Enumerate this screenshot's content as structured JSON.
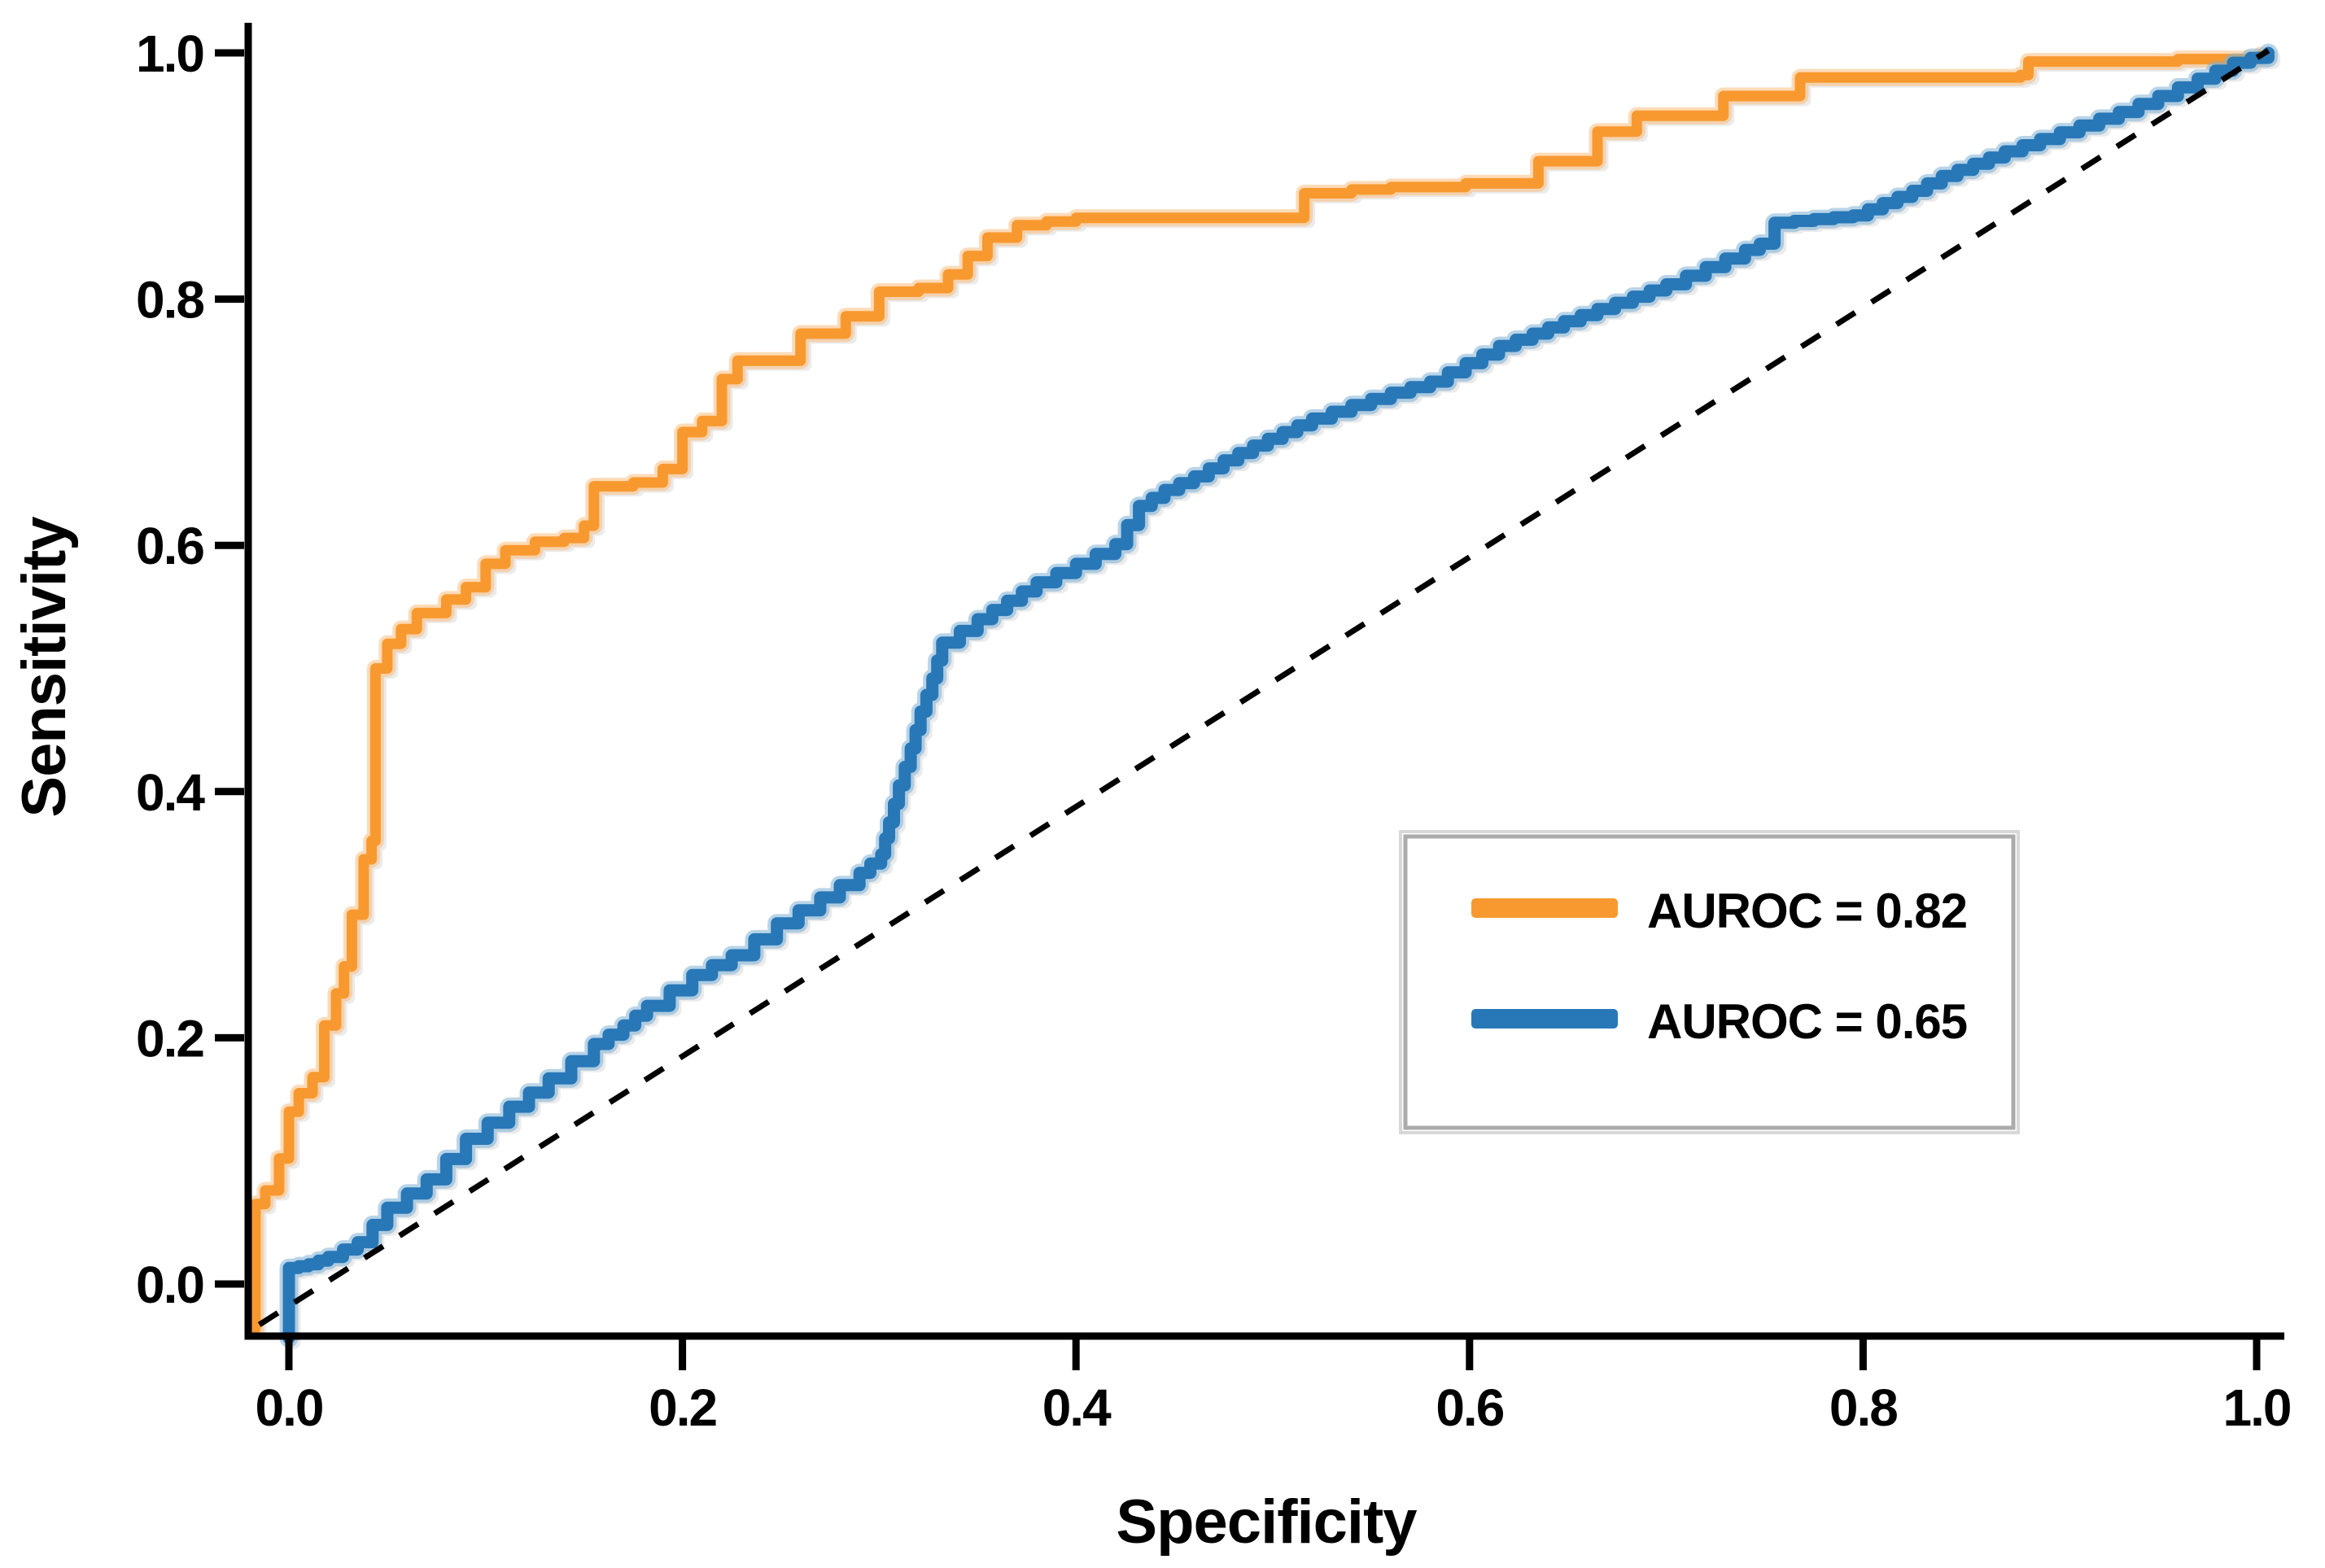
{
  "chart_data": {
    "type": "line",
    "subtype": "roc-step-curves",
    "title": "",
    "xlabel": "Specificity",
    "ylabel": "Sensitivity",
    "xlim": [
      0.0,
      1.0
    ],
    "ylim": [
      0.0,
      1.0
    ],
    "grid": "off",
    "x_ticks": [
      {
        "value": 0.0,
        "label": "0.0"
      },
      {
        "value": 0.2,
        "label": "0.2"
      },
      {
        "value": 0.4,
        "label": "0.4"
      },
      {
        "value": 0.6,
        "label": "0.6"
      },
      {
        "value": 0.8,
        "label": "0.8"
      },
      {
        "value": 1.0,
        "label": "1.0"
      }
    ],
    "y_ticks": [
      {
        "value": 0.0,
        "label": "0.0"
      },
      {
        "value": 0.2,
        "label": "0.2"
      },
      {
        "value": 0.4,
        "label": "0.4"
      },
      {
        "value": 0.6,
        "label": "0.6"
      },
      {
        "value": 0.8,
        "label": "0.8"
      },
      {
        "value": 1.0,
        "label": "1.0"
      }
    ],
    "series": [
      {
        "name": "AUROC = 0.82",
        "auroc": 0.82,
        "color": "#F8992F",
        "halo_color": "#FBBE7E",
        "line_width": 13,
        "substeps": 1,
        "points": [
          [
            -0.017,
            -0.036
          ],
          [
            -0.017,
            0.065
          ],
          [
            -0.012,
            0.068
          ],
          [
            -0.012,
            0.076
          ],
          [
            -0.005,
            0.079
          ],
          [
            -0.005,
            0.102
          ],
          [
            0.0,
            0.105
          ],
          [
            0.0,
            0.14
          ],
          [
            0.005,
            0.143
          ],
          [
            0.005,
            0.155
          ],
          [
            0.012,
            0.158
          ],
          [
            0.012,
            0.168
          ],
          [
            0.018,
            0.171
          ],
          [
            0.018,
            0.21
          ],
          [
            0.024,
            0.213
          ],
          [
            0.024,
            0.236
          ],
          [
            0.028,
            0.239
          ],
          [
            0.028,
            0.258
          ],
          [
            0.032,
            0.261
          ],
          [
            0.032,
            0.3
          ],
          [
            0.038,
            0.303
          ],
          [
            0.038,
            0.345
          ],
          [
            0.042,
            0.348
          ],
          [
            0.042,
            0.36
          ],
          [
            0.044,
            0.363
          ],
          [
            0.044,
            0.5
          ],
          [
            0.05,
            0.503
          ],
          [
            0.05,
            0.52
          ],
          [
            0.057,
            0.523
          ],
          [
            0.057,
            0.532
          ],
          [
            0.065,
            0.535
          ],
          [
            0.065,
            0.545
          ],
          [
            0.08,
            0.548
          ],
          [
            0.08,
            0.556
          ],
          [
            0.09,
            0.559
          ],
          [
            0.09,
            0.566
          ],
          [
            0.1,
            0.569
          ],
          [
            0.1,
            0.585
          ],
          [
            0.11,
            0.588
          ],
          [
            0.11,
            0.596
          ],
          [
            0.125,
            0.599
          ],
          [
            0.125,
            0.603
          ],
          [
            0.14,
            0.606
          ],
          [
            0.15,
            0.609
          ],
          [
            0.15,
            0.616
          ],
          [
            0.155,
            0.619
          ],
          [
            0.155,
            0.648
          ],
          [
            0.175,
            0.651
          ],
          [
            0.19,
            0.654
          ],
          [
            0.19,
            0.662
          ],
          [
            0.2,
            0.665
          ],
          [
            0.2,
            0.692
          ],
          [
            0.21,
            0.695
          ],
          [
            0.21,
            0.701
          ],
          [
            0.22,
            0.704
          ],
          [
            0.22,
            0.735
          ],
          [
            0.228,
            0.738
          ],
          [
            0.228,
            0.75
          ],
          [
            0.26,
            0.753
          ],
          [
            0.26,
            0.772
          ],
          [
            0.283,
            0.775
          ],
          [
            0.283,
            0.786
          ],
          [
            0.3,
            0.789
          ],
          [
            0.3,
            0.806
          ],
          [
            0.32,
            0.809
          ],
          [
            0.335,
            0.812
          ],
          [
            0.335,
            0.82
          ],
          [
            0.345,
            0.823
          ],
          [
            0.345,
            0.835
          ],
          [
            0.355,
            0.838
          ],
          [
            0.355,
            0.85
          ],
          [
            0.37,
            0.853
          ],
          [
            0.37,
            0.86
          ],
          [
            0.385,
            0.863
          ],
          [
            0.4,
            0.866
          ],
          [
            0.516,
            0.869
          ],
          [
            0.516,
            0.886
          ],
          [
            0.54,
            0.889
          ],
          [
            0.56,
            0.891
          ],
          [
            0.598,
            0.894
          ],
          [
            0.635,
            0.897
          ],
          [
            0.635,
            0.912
          ],
          [
            0.665,
            0.915
          ],
          [
            0.665,
            0.936
          ],
          [
            0.685,
            0.939
          ],
          [
            0.685,
            0.949
          ],
          [
            0.729,
            0.952
          ],
          [
            0.729,
            0.965
          ],
          [
            0.768,
            0.968
          ],
          [
            0.768,
            0.98
          ],
          [
            0.88,
            0.982
          ],
          [
            0.884,
            0.993
          ],
          [
            0.96,
            0.995
          ],
          [
            1.002,
            0.998
          ]
        ]
      },
      {
        "name": "AUROC = 0.65",
        "auroc": 0.65,
        "color": "#2878B8",
        "halo_color": "#7EB0D5",
        "line_width": 15,
        "substeps": 2,
        "points": [
          [
            0.0,
            -0.044
          ],
          [
            0.0,
            0.013
          ],
          [
            0.01,
            0.016
          ],
          [
            0.02,
            0.022
          ],
          [
            0.035,
            0.034
          ],
          [
            0.05,
            0.062
          ],
          [
            0.07,
            0.085
          ],
          [
            0.09,
            0.118
          ],
          [
            0.112,
            0.144
          ],
          [
            0.132,
            0.167
          ],
          [
            0.155,
            0.195
          ],
          [
            0.17,
            0.21
          ],
          [
            0.182,
            0.226
          ],
          [
            0.205,
            0.251
          ],
          [
            0.225,
            0.267
          ],
          [
            0.248,
            0.293
          ],
          [
            0.27,
            0.314
          ],
          [
            0.29,
            0.334
          ],
          [
            0.301,
            0.349
          ],
          [
            0.305,
            0.375
          ],
          [
            0.31,
            0.405
          ],
          [
            0.316,
            0.435
          ],
          [
            0.321,
            0.465
          ],
          [
            0.327,
            0.492
          ],
          [
            0.332,
            0.521
          ],
          [
            0.35,
            0.54
          ],
          [
            0.365,
            0.555
          ],
          [
            0.38,
            0.57
          ],
          [
            0.4,
            0.585
          ],
          [
            0.42,
            0.601
          ],
          [
            0.432,
            0.632
          ],
          [
            0.445,
            0.645
          ],
          [
            0.46,
            0.656
          ],
          [
            0.475,
            0.669
          ],
          [
            0.49,
            0.681
          ],
          [
            0.505,
            0.692
          ],
          [
            0.52,
            0.703
          ],
          [
            0.54,
            0.714
          ],
          [
            0.56,
            0.724
          ],
          [
            0.58,
            0.733
          ],
          [
            0.598,
            0.748
          ],
          [
            0.615,
            0.762
          ],
          [
            0.632,
            0.772
          ],
          [
            0.648,
            0.782
          ],
          [
            0.665,
            0.792
          ],
          [
            0.683,
            0.802
          ],
          [
            0.7,
            0.812
          ],
          [
            0.72,
            0.826
          ],
          [
            0.74,
            0.84
          ],
          [
            0.755,
            0.85
          ],
          [
            0.755,
            0.862
          ],
          [
            0.775,
            0.865
          ],
          [
            0.795,
            0.868
          ],
          [
            0.81,
            0.878
          ],
          [
            0.825,
            0.888
          ],
          [
            0.84,
            0.9
          ],
          [
            0.856,
            0.91
          ],
          [
            0.872,
            0.92
          ],
          [
            0.89,
            0.93
          ],
          [
            0.91,
            0.941
          ],
          [
            0.93,
            0.952
          ],
          [
            0.95,
            0.965
          ],
          [
            0.97,
            0.979
          ],
          [
            0.988,
            0.992
          ],
          [
            1.006,
            1.0
          ]
        ]
      }
    ],
    "reference_line": {
      "style": "dashed",
      "color": "#000000",
      "from": [
        -0.015,
        -0.033
      ],
      "to": [
        1.006,
        1.002
      ]
    },
    "legend": {
      "position": "lower right",
      "border_color": "#ABABAB",
      "entries": [
        {
          "label": "AUROC = 0.82",
          "color": "#F8992F"
        },
        {
          "label": "AUROC = 0.65",
          "color": "#2878B8"
        }
      ]
    }
  }
}
